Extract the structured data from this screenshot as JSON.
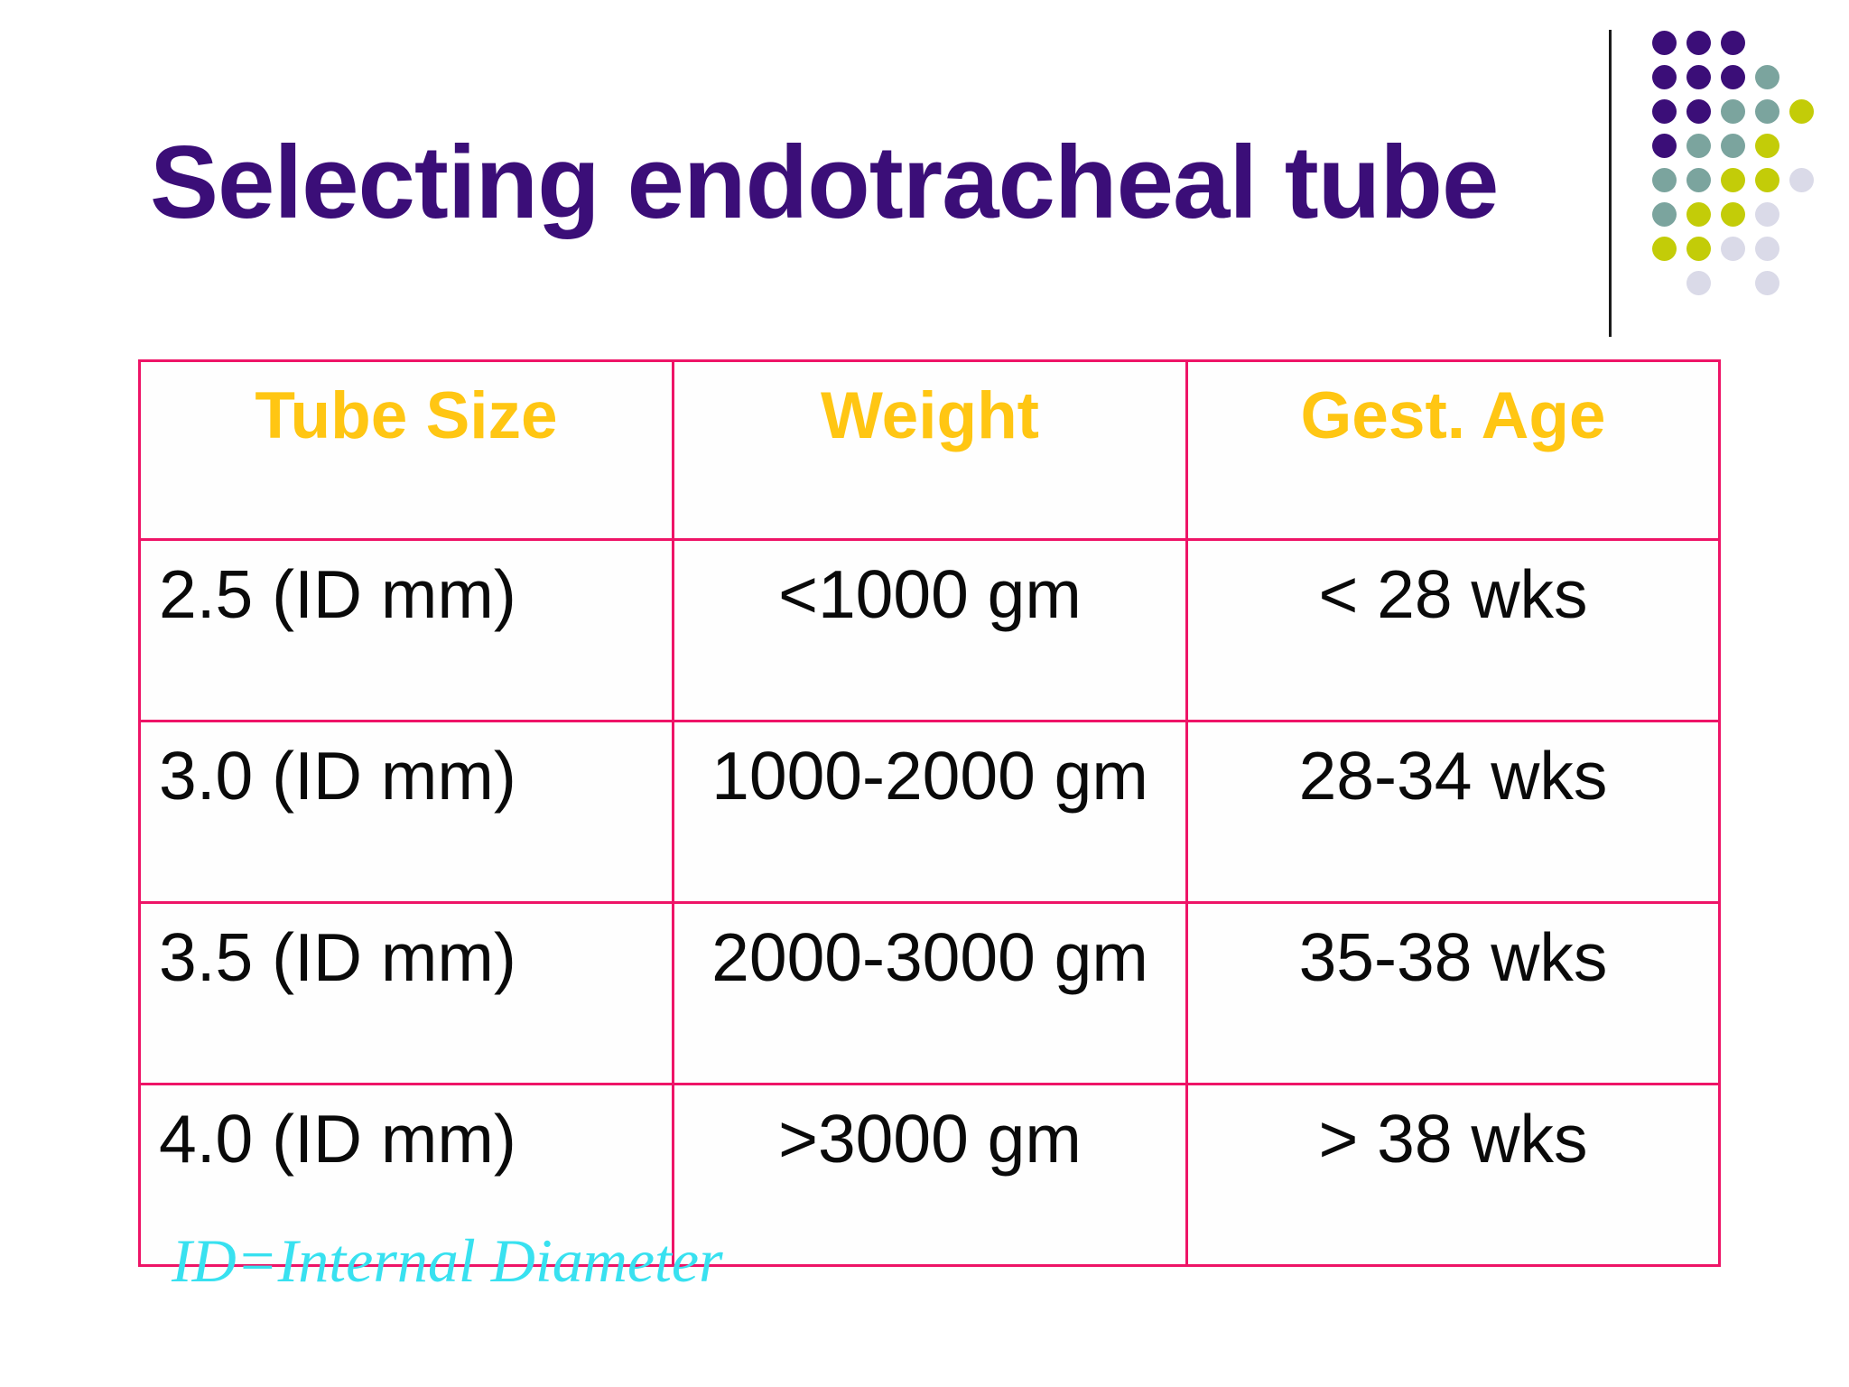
{
  "slide": {
    "title": "Selecting endotracheal tube",
    "footnote": "ID=Internal Diameter"
  },
  "table": {
    "columns": [
      "Tube Size",
      "Weight",
      "Gest. Age"
    ],
    "rows": [
      [
        "2.5 (ID mm)",
        "<1000 gm",
        "< 28 wks"
      ],
      [
        "3.0 (ID mm)",
        "1000-2000 gm",
        "28-34 wks"
      ],
      [
        "3.5 (ID mm)",
        "2000-3000 gm",
        "35-38 wks"
      ],
      [
        "4.0 (ID mm)",
        ">3000 gm",
        "> 38 wks"
      ]
    ]
  },
  "colors": {
    "page_bg": "#FFFFFF",
    "title_text": "#3B0E78",
    "table_border": "#EE1467",
    "header_text": "#FFC613",
    "body_text": "#0A0A0A",
    "footnote_text": "#38E1F0",
    "divider_line": "#1A1A1A"
  },
  "decoration": {
    "dot_colors": {
      "purple": "#3B0E78",
      "teal": "#7BA49E",
      "yellow": "#C3CC08",
      "lavender": "#DADAE8"
    },
    "dot_matrix": [
      [
        "purple",
        "purple",
        "purple",
        null,
        null
      ],
      [
        "purple",
        "purple",
        "purple",
        "teal",
        null
      ],
      [
        "purple",
        "purple",
        "teal",
        "teal",
        "yellow"
      ],
      [
        "purple",
        "teal",
        "teal",
        "yellow",
        null
      ],
      [
        "teal",
        "teal",
        "yellow",
        "yellow",
        "lavender"
      ],
      [
        "teal",
        "yellow",
        "yellow",
        "lavender",
        null
      ],
      [
        "yellow",
        "yellow",
        "lavender",
        "lavender",
        null
      ],
      [
        null,
        "lavender",
        null,
        "lavender",
        null
      ]
    ]
  }
}
